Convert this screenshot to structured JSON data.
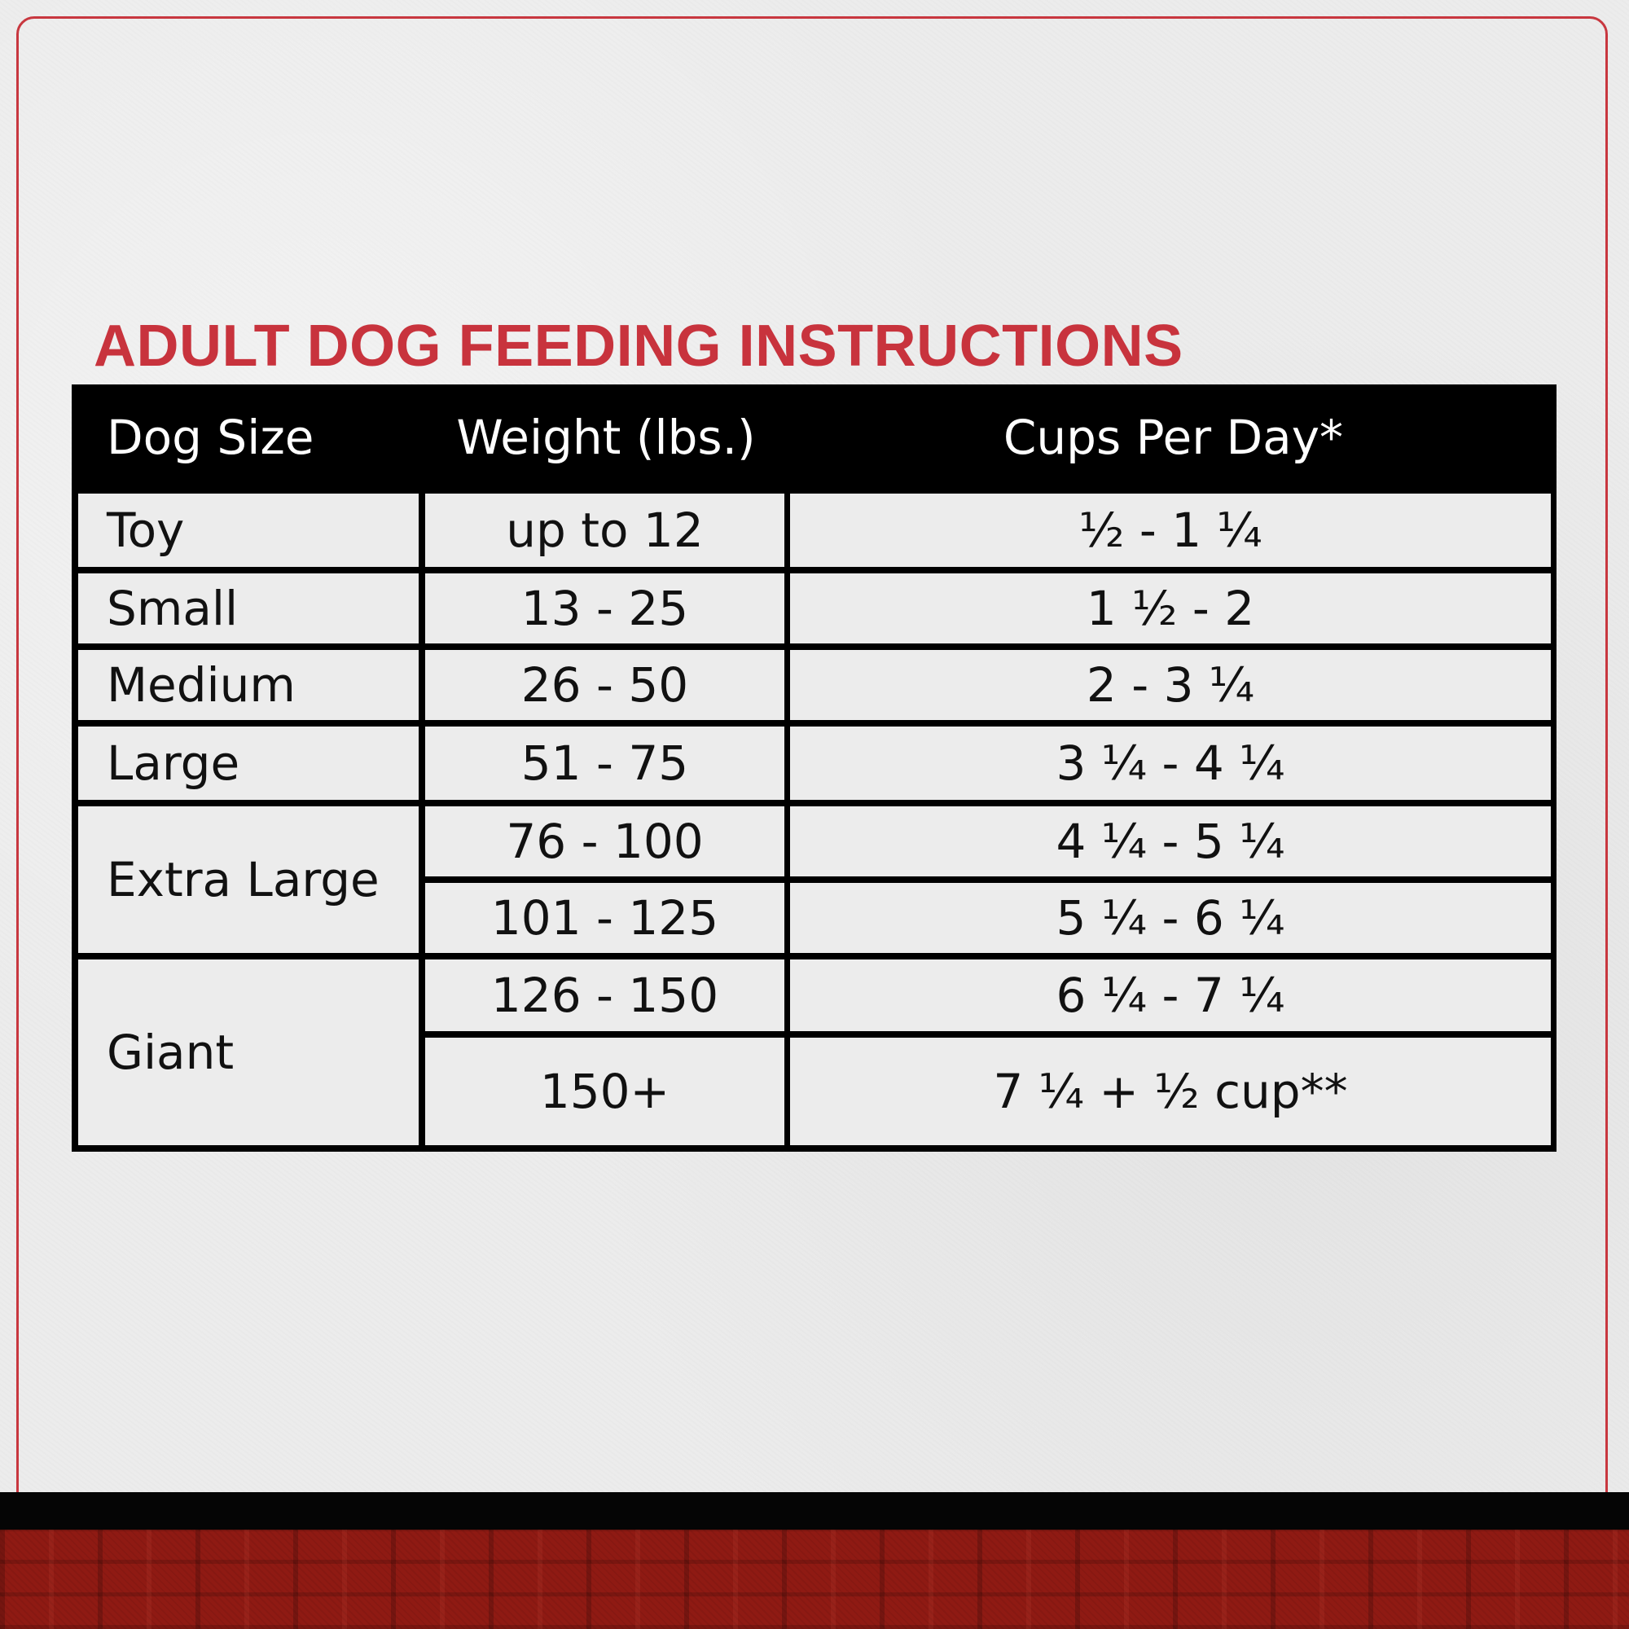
{
  "title": "ADULT DOG FEEDING INSTRUCTIONS",
  "colors": {
    "accent_red": "#c8333d",
    "frame_red": "#c8373f",
    "header_black": "#000000",
    "paper": "#ececec",
    "footer_plaid": "#8f1a13"
  },
  "table": {
    "headers": {
      "dog_size": "Dog Size",
      "weight": "Weight (lbs.)",
      "cups": "Cups Per Day*"
    },
    "rows": [
      {
        "size": "Toy",
        "weight": "up to 12",
        "cups": "½ - 1 ¼"
      },
      {
        "size": "Small",
        "weight": "13 - 25",
        "cups": "1 ½ - 2"
      },
      {
        "size": "Medium",
        "weight": "26 - 50",
        "cups": "2 - 3 ¼"
      },
      {
        "size": "Large",
        "weight": "51 - 75",
        "cups": "3 ¼ - 4 ¼"
      },
      {
        "size": "Extra Large",
        "weight": "76 - 100",
        "cups": "4 ¼ - 5 ¼"
      },
      {
        "size": "Extra Large",
        "weight": "101 - 125",
        "cups": "5 ¼ -  6 ¼"
      },
      {
        "size": "Giant",
        "weight": "126 - 150",
        "cups": "6 ¼ - 7 ¼"
      },
      {
        "size": "Giant",
        "weight": "150+",
        "cups": "7 ¼ + ½ cup**"
      }
    ]
  }
}
